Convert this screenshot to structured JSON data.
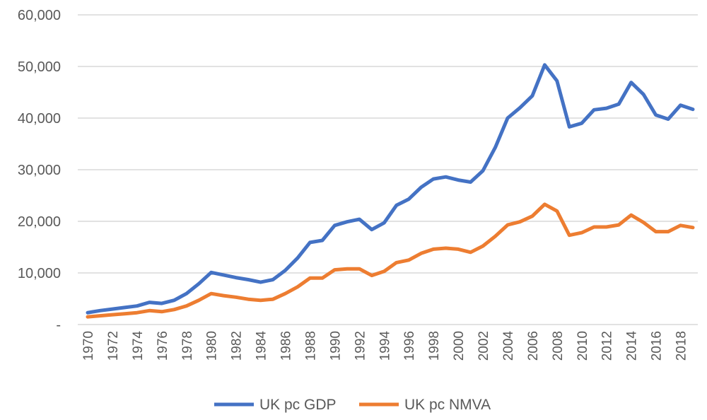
{
  "chart_data": {
    "type": "line",
    "title": "",
    "xlabel": "",
    "ylabel": "",
    "ylim": [
      0,
      60000
    ],
    "yticks": [
      0,
      10000,
      20000,
      30000,
      40000,
      50000,
      60000
    ],
    "ytick_labels": [
      "-",
      "10,000",
      "20,000",
      "30,000",
      "40,000",
      "50,000",
      "60,000"
    ],
    "grid": true,
    "legend": "bottom",
    "x": [
      1970,
      1971,
      1972,
      1973,
      1974,
      1975,
      1976,
      1977,
      1978,
      1979,
      1980,
      1981,
      1982,
      1983,
      1984,
      1985,
      1986,
      1987,
      1988,
      1989,
      1990,
      1991,
      1992,
      1993,
      1994,
      1995,
      1996,
      1997,
      1998,
      1999,
      2000,
      2001,
      2002,
      2003,
      2004,
      2005,
      2006,
      2007,
      2008,
      2009,
      2010,
      2011,
      2012,
      2013,
      2014,
      2015,
      2016,
      2017,
      2018,
      2019
    ],
    "xtick_labels": [
      "1970",
      "1972",
      "1974",
      "1976",
      "1978",
      "1980",
      "1982",
      "1984",
      "1986",
      "1988",
      "1990",
      "1992",
      "1994",
      "1996",
      "1998",
      "2000",
      "2002",
      "2004",
      "2006",
      "2008",
      "2010",
      "2012",
      "2014",
      "2016",
      "2018"
    ],
    "series": [
      {
        "name": "UK pc GDP",
        "color": "#4472C4",
        "values": [
          2300,
          2700,
          3000,
          3300,
          3600,
          4300,
          4100,
          4700,
          6000,
          7900,
          10100,
          9600,
          9100,
          8700,
          8200,
          8700,
          10500,
          12900,
          15900,
          16300,
          19200,
          19900,
          20400,
          18400,
          19700,
          23100,
          24300,
          26600,
          28200,
          28600,
          28000,
          27600,
          29800,
          34300,
          40000,
          42000,
          44300,
          50300,
          47200,
          38300,
          39000,
          41600,
          41900,
          42700,
          46900,
          44600,
          40600,
          39800,
          42500,
          41700
        ]
      },
      {
        "name": "UK pc NMVA",
        "color": "#ED7D31",
        "values": [
          1500,
          1700,
          1900,
          2100,
          2300,
          2700,
          2500,
          2900,
          3600,
          4700,
          6000,
          5600,
          5300,
          4900,
          4700,
          4900,
          6000,
          7300,
          9000,
          9000,
          10600,
          10800,
          10800,
          9500,
          10300,
          12000,
          12500,
          13800,
          14600,
          14800,
          14600,
          14000,
          15200,
          17100,
          19300,
          19900,
          21000,
          23300,
          22000,
          17300,
          17800,
          18900,
          18900,
          19300,
          21200,
          19800,
          18000,
          18000,
          19200,
          18800
        ]
      }
    ]
  }
}
